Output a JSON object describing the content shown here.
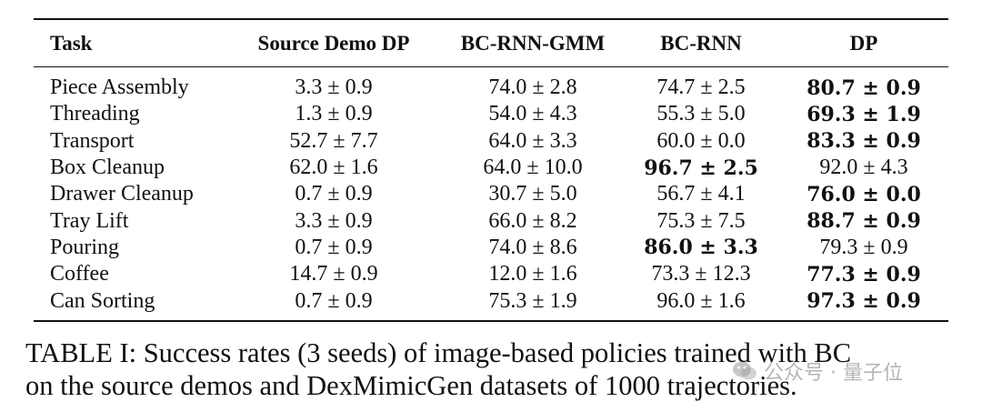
{
  "table": {
    "columns": [
      "Task",
      "Source Demo DP",
      "BC-RNN-GMM",
      "BC-RNN",
      "DP"
    ],
    "rows": [
      {
        "task": "Piece Assembly",
        "cells": [
          "3.3 ± 0.9",
          "74.0 ± 2.8",
          "74.7 ± 2.5",
          "80.7 ± 0.9"
        ],
        "best": 3
      },
      {
        "task": "Threading",
        "cells": [
          "1.3 ± 0.9",
          "54.0 ± 4.3",
          "55.3 ± 5.0",
          "69.3 ± 1.9"
        ],
        "best": 3
      },
      {
        "task": "Transport",
        "cells": [
          "52.7 ± 7.7",
          "64.0 ± 3.3",
          "60.0 ± 0.0",
          "83.3 ± 0.9"
        ],
        "best": 3
      },
      {
        "task": "Box Cleanup",
        "cells": [
          "62.0 ± 1.6",
          "64.0 ± 10.0",
          "96.7 ± 2.5",
          "92.0 ± 4.3"
        ],
        "best": 2
      },
      {
        "task": "Drawer Cleanup",
        "cells": [
          "0.7 ± 0.9",
          "30.7 ± 5.0",
          "56.7 ± 4.1",
          "76.0 ± 0.0"
        ],
        "best": 3
      },
      {
        "task": "Tray Lift",
        "cells": [
          "3.3 ± 0.9",
          "66.0 ± 8.2",
          "75.3 ± 7.5",
          "88.7 ± 0.9"
        ],
        "best": 3
      },
      {
        "task": "Pouring",
        "cells": [
          "0.7 ± 0.9",
          "74.0 ± 8.6",
          "86.0 ± 3.3",
          "79.3 ± 0.9"
        ],
        "best": 2
      },
      {
        "task": "Coffee",
        "cells": [
          "14.7 ± 0.9",
          "12.0 ± 1.6",
          "73.3 ± 12.3",
          "77.3 ± 0.9"
        ],
        "best": 3
      },
      {
        "task": "Can Sorting",
        "cells": [
          "0.7 ± 0.9",
          "75.3 ± 1.9",
          "96.0 ± 1.6",
          "97.3 ± 0.9"
        ],
        "best": 3
      }
    ]
  },
  "caption": {
    "line1": "TABLE I: Success rates (3 seeds) of image-based policies trained with BC",
    "line2": "on the source demos and DexMimicGen datasets of 1000 trajectories."
  },
  "watermark": {
    "text": "公众号 · 量子位",
    "icon": "wechat-icon"
  }
}
